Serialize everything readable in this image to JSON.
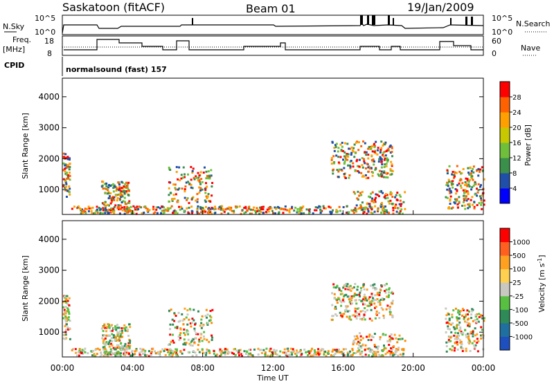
{
  "header": {
    "station": "Saskatoon (fitACF)",
    "beam": "Beam 01",
    "date": "19/Jan/2009"
  },
  "summary_panels": {
    "nsky_label": "N.Sky",
    "nsky_ticks": [
      "10^5",
      "10^0"
    ],
    "nsearch_label": "N.Search",
    "nsearch_ticks": [
      "10^5",
      "10^0"
    ],
    "freq_label": "Freq.",
    "freq_unit": "[MHz]",
    "freq_ticks": [
      "18",
      "8"
    ],
    "nave_label": "Nave",
    "nave_ticks": [
      "60",
      "0"
    ],
    "cpid_label": "CPID",
    "cpid_text": "normalsound (fast) 157"
  },
  "chart_data": [
    {
      "type": "heatmap",
      "name": "power",
      "ylabel": "Slant Range [km]",
      "yticks": [
        "1000",
        "2000",
        "3000",
        "4000"
      ],
      "ylim": [
        200,
        4600
      ],
      "colorbar": {
        "label": "Power [dB]",
        "ticks": [
          "4",
          "8",
          "12",
          "16",
          "20",
          "24",
          "28"
        ],
        "colors": [
          "#0000ff",
          "#1f4fa8",
          "#3a8f4a",
          "#6fbf3a",
          "#c8c800",
          "#ffa000",
          "#ff6000",
          "#ff0000"
        ]
      }
    },
    {
      "type": "heatmap",
      "name": "velocity",
      "ylabel": "Slant Range [km]",
      "yticks": [
        "1000",
        "2000",
        "3000",
        "4000"
      ],
      "ylim": [
        200,
        4600
      ],
      "xlabel": "Time UT",
      "xticks": [
        "00:00",
        "04:00",
        "08:00",
        "12:00",
        "16:00",
        "20:00",
        "00:00"
      ],
      "colorbar": {
        "label": "Velocity [m s",
        "label_sup": "-1",
        "label_end": "]",
        "ticks": [
          "1000",
          "500",
          "100",
          "25",
          "-25",
          "-100",
          "-500",
          "-1000"
        ],
        "colors": [
          "#1d4fbf",
          "#1f6fa0",
          "#2e8b57",
          "#58c040",
          "#c8c8c0",
          "#ffd050",
          "#ffa020",
          "#ff6020",
          "#ff0000"
        ]
      }
    }
  ]
}
